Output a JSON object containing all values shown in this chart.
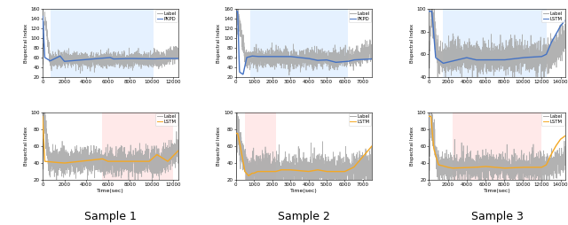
{
  "fig_width": 6.4,
  "fig_height": 2.54,
  "dpi": 100,
  "samples": [
    {
      "label": "Sample 1",
      "top": {
        "xmax": 12500,
        "xlim": [
          0,
          12500
        ],
        "xticks": [
          0,
          2000,
          4000,
          6000,
          8000,
          10000,
          12000
        ],
        "ylim": [
          20,
          160
        ],
        "yticks": [
          20,
          40,
          60,
          80,
          100,
          120,
          140,
          160
        ],
        "ylabel": "Bispectral Index",
        "xlabel": "",
        "legend": [
          "Label",
          "PKPD"
        ],
        "bg_color": "#cce5ff",
        "bg_alpha": 0.5,
        "bg_start": 700,
        "bg_end": 10200,
        "line_color": "#4472c4",
        "pred_segments": [
          [
            0,
            145
          ],
          [
            200,
            60
          ],
          [
            700,
            53
          ],
          [
            1600,
            63
          ],
          [
            2000,
            52
          ],
          [
            6200,
            60
          ],
          [
            6500,
            57
          ],
          [
            8000,
            58
          ],
          [
            10200,
            57
          ],
          [
            11000,
            58
          ],
          [
            12500,
            58
          ]
        ],
        "noise_std": 8,
        "base_level": 55,
        "spike_height": 145,
        "spike_x": 200,
        "drop_x": 700,
        "end_rise_x": 11200
      },
      "bottom": {
        "xmax": 12500,
        "xlim": [
          0,
          12500
        ],
        "xticks": [
          0,
          2000,
          4000,
          6000,
          8000,
          10000,
          12000
        ],
        "ylim": [
          20,
          100
        ],
        "yticks": [
          20,
          40,
          60,
          80,
          100
        ],
        "ylabel": "Bispectral Index",
        "xlabel": "Time(sec)",
        "legend": [
          "Label",
          "LSTM"
        ],
        "bg_color": "#ffd5d5",
        "bg_alpha": 0.5,
        "bg_start": 5500,
        "bg_end": 12000,
        "line_color": "#f4a823",
        "pred_segments": [
          [
            0,
            95
          ],
          [
            200,
            42
          ],
          [
            1000,
            41
          ],
          [
            2000,
            40
          ],
          [
            5500,
            45
          ],
          [
            6000,
            42
          ],
          [
            9800,
            42
          ],
          [
            10500,
            50
          ],
          [
            11500,
            42
          ],
          [
            12500,
            55
          ]
        ],
        "noise_std": 8,
        "base_level": 42,
        "spike_height": 95,
        "spike_x": 150,
        "drop_x": 600,
        "end_rise_x": 11000
      }
    },
    {
      "label": "Sample 2",
      "top": {
        "xmax": 7500,
        "xlim": [
          0,
          7500
        ],
        "xticks": [
          0,
          1000,
          2000,
          3000,
          4000,
          5000,
          6000,
          7000
        ],
        "ylim": [
          20,
          160
        ],
        "yticks": [
          20,
          40,
          60,
          80,
          100,
          120,
          140,
          160
        ],
        "ylabel": "Bispectral Index",
        "xlabel": "",
        "legend": [
          "Label",
          "PKPD"
        ],
        "bg_color": "#cce5ff",
        "bg_alpha": 0.5,
        "bg_start": 800,
        "bg_end": 6200,
        "line_color": "#4472c4",
        "pred_segments": [
          [
            0,
            155
          ],
          [
            100,
            155
          ],
          [
            200,
            30
          ],
          [
            400,
            25
          ],
          [
            600,
            60
          ],
          [
            900,
            63
          ],
          [
            1200,
            62
          ],
          [
            2000,
            62
          ],
          [
            3000,
            62
          ],
          [
            4000,
            58
          ],
          [
            4500,
            54
          ],
          [
            5000,
            55
          ],
          [
            5500,
            50
          ],
          [
            6200,
            52
          ],
          [
            6500,
            55
          ],
          [
            7500,
            57
          ]
        ],
        "noise_std": 10,
        "base_level": 58,
        "spike_height": 155,
        "spike_x": 100,
        "drop_x": 500,
        "end_rise_x": 6500
      },
      "bottom": {
        "xmax": 7500,
        "xlim": [
          0,
          7500
        ],
        "xticks": [
          0,
          1000,
          2000,
          3000,
          4000,
          5000,
          6000,
          7000
        ],
        "ylim": [
          20,
          100
        ],
        "yticks": [
          20,
          40,
          60,
          80,
          100
        ],
        "ylabel": "Bispectral Index",
        "xlabel": "Time(sec)",
        "legend": [
          "Label",
          "LSTM"
        ],
        "bg_color": "#ffd5d5",
        "bg_alpha": 0.5,
        "bg_start": 500,
        "bg_end": 2200,
        "line_color": "#f4a823",
        "pred_segments": [
          [
            0,
            75
          ],
          [
            100,
            75
          ],
          [
            200,
            65
          ],
          [
            500,
            30
          ],
          [
            700,
            25
          ],
          [
            900,
            28
          ],
          [
            1000,
            28
          ],
          [
            1200,
            30
          ],
          [
            2200,
            30
          ],
          [
            2500,
            32
          ],
          [
            3000,
            32
          ],
          [
            4000,
            30
          ],
          [
            4500,
            32
          ],
          [
            5000,
            30
          ],
          [
            5500,
            30
          ],
          [
            6000,
            30
          ],
          [
            6500,
            35
          ],
          [
            7500,
            60
          ]
        ],
        "noise_std": 10,
        "base_level": 30,
        "spike_height": 80,
        "spike_x": 100,
        "drop_x": 600,
        "end_rise_x": 6500
      }
    },
    {
      "label": "Sample 3",
      "top": {
        "xmax": 14500,
        "xlim": [
          0,
          14500
        ],
        "xticks": [
          0,
          2000,
          4000,
          6000,
          8000,
          10000,
          12000,
          14000
        ],
        "ylim": [
          40,
          100
        ],
        "yticks": [
          40,
          60,
          80,
          100
        ],
        "ylabel": "Bispectral Index",
        "xlabel": "",
        "legend": [
          "Label",
          "LSTM"
        ],
        "bg_color": "#cce5ff",
        "bg_alpha": 0.5,
        "bg_start": 1500,
        "bg_end": 12500,
        "line_color": "#4472c4",
        "pred_segments": [
          [
            0,
            98
          ],
          [
            300,
            98
          ],
          [
            700,
            57
          ],
          [
            1500,
            52
          ],
          [
            3000,
            55
          ],
          [
            4000,
            57
          ],
          [
            5000,
            55
          ],
          [
            8000,
            55
          ],
          [
            10000,
            57
          ],
          [
            12000,
            58
          ],
          [
            12500,
            60
          ],
          [
            13000,
            70
          ],
          [
            14000,
            85
          ],
          [
            14500,
            90
          ]
        ],
        "noise_std": 7,
        "base_level": 57,
        "spike_height": 98,
        "spike_x": 250,
        "drop_x": 1000,
        "end_rise_x": 12500
      },
      "bottom": {
        "xmax": 14500,
        "xlim": [
          0,
          14500
        ],
        "xticks": [
          0,
          2000,
          4000,
          6000,
          8000,
          10000,
          12000,
          14000
        ],
        "ylim": [
          20,
          100
        ],
        "yticks": [
          20,
          40,
          60,
          80,
          100
        ],
        "ylabel": "Bispectral Index",
        "xlabel": "Time(sec)",
        "legend": [
          "Label",
          "LSTM"
        ],
        "bg_color": "#ffd5d5",
        "bg_alpha": 0.5,
        "bg_start": 2500,
        "bg_end": 12000,
        "line_color": "#f4a823",
        "pred_segments": [
          [
            0,
            95
          ],
          [
            200,
            95
          ],
          [
            500,
            57
          ],
          [
            1000,
            38
          ],
          [
            2000,
            35
          ],
          [
            2500,
            34
          ],
          [
            5000,
            35
          ],
          [
            6000,
            36
          ],
          [
            8000,
            34
          ],
          [
            10000,
            35
          ],
          [
            12000,
            35
          ],
          [
            12500,
            38
          ],
          [
            13000,
            50
          ],
          [
            13500,
            60
          ],
          [
            14000,
            68
          ],
          [
            14500,
            72
          ]
        ],
        "noise_std": 8,
        "base_level": 35,
        "spike_height": 95,
        "spike_x": 200,
        "drop_x": 900,
        "end_rise_x": 12500
      }
    }
  ],
  "gray_color": "#aaaaaa",
  "sample_fontsize": 9
}
